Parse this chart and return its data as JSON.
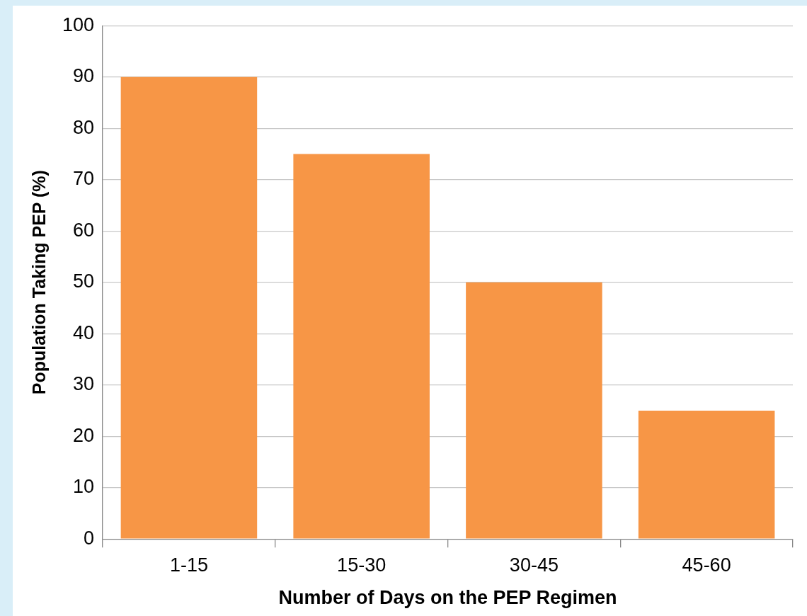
{
  "chart_data": {
    "type": "bar",
    "categories": [
      "1-15",
      "15-30",
      "30-45",
      "45-60"
    ],
    "values": [
      90,
      75,
      50,
      25
    ],
    "color": "#f79646",
    "xlabel": "Number of Days on the PEP Regimen",
    "ylabel": "Population Taking PEP (%)",
    "ylim": [
      0,
      100
    ],
    "yticks": [
      0,
      10,
      20,
      30,
      40,
      50,
      60,
      70,
      80,
      90,
      100
    ],
    "grid": "y",
    "legend": false
  }
}
